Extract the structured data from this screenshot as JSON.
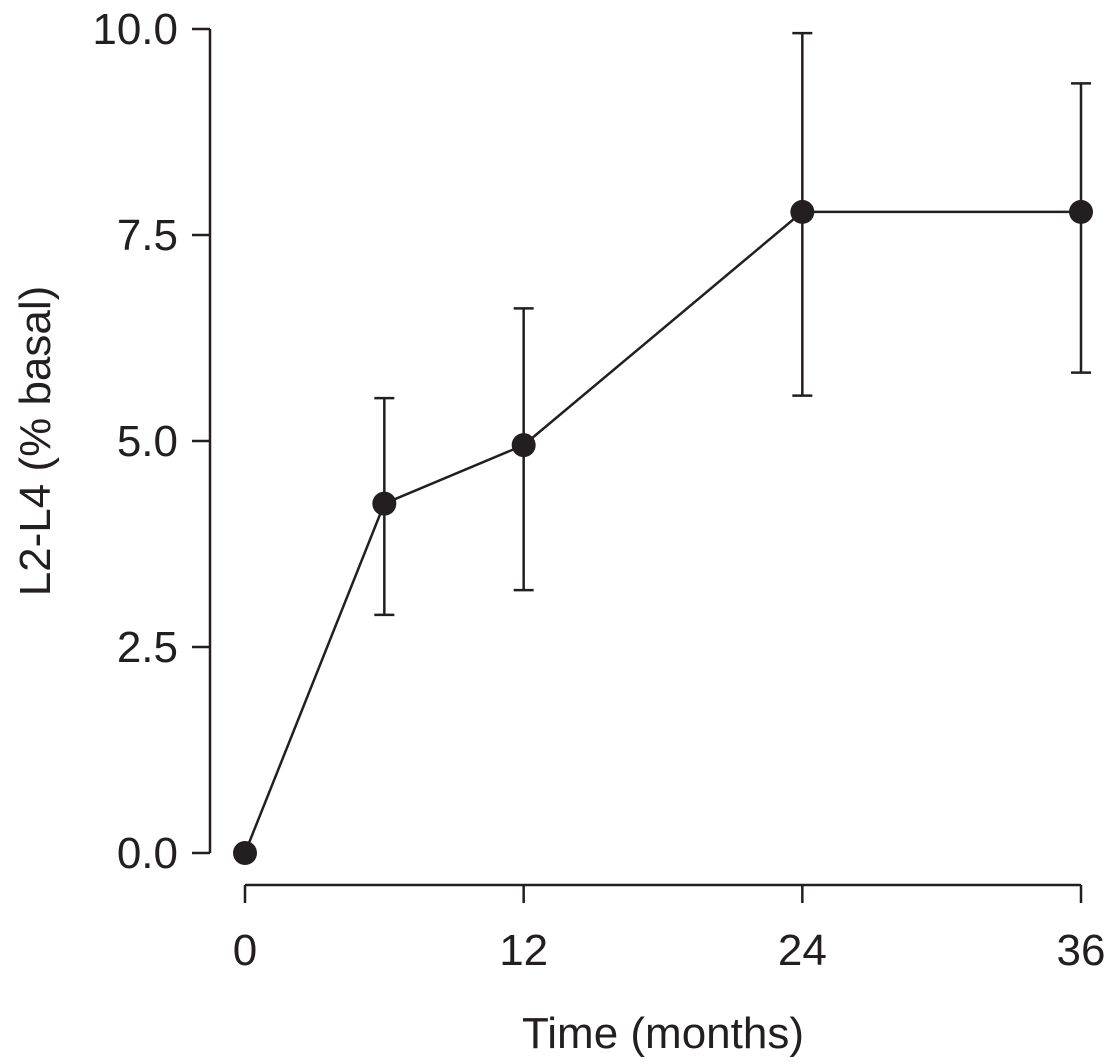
{
  "chart_data": {
    "type": "line",
    "title": "",
    "xlabel": "Time (months)",
    "ylabel": "L2-L4 (% basal)",
    "xlim": [
      0,
      36
    ],
    "ylim": [
      0,
      10
    ],
    "xticks": [
      "0",
      "12",
      "24",
      "36"
    ],
    "xtick_values": [
      0,
      12,
      24,
      36
    ],
    "yticks": [
      "0.0",
      "2.5",
      "5.0",
      "7.5",
      "10.0"
    ],
    "ytick_values": [
      0,
      2.5,
      5,
      7.5,
      10
    ],
    "grid": false,
    "series": [
      {
        "name": "L2-L4",
        "x": [
          0,
          6,
          12,
          24,
          36
        ],
        "y": [
          0.0,
          4.24,
          4.95,
          7.78,
          7.78
        ],
        "error_upper": [
          null,
          5.52,
          6.61,
          9.95,
          9.34
        ],
        "error_lower": [
          null,
          2.89,
          3.19,
          5.55,
          5.83
        ]
      }
    ],
    "colors": {
      "ink": "#231f20"
    }
  }
}
